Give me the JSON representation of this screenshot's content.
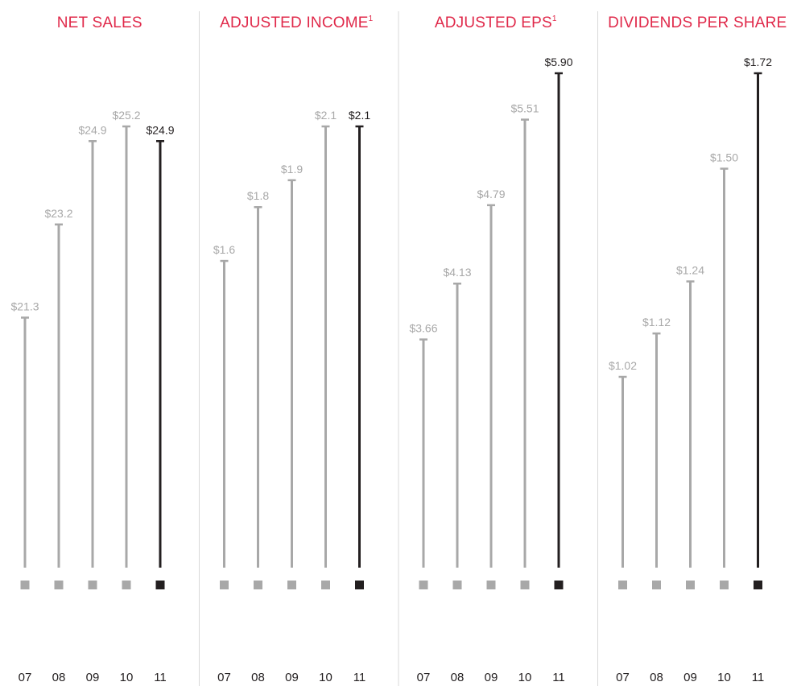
{
  "colors": {
    "title": "#e0294a",
    "bar": "#a8a8a8",
    "bar_highlight": "#231f20",
    "label": "#a8a8a8",
    "label_highlight": "#231f20",
    "tick": "#231f20",
    "divider": "#d9d9d9"
  },
  "chart_data": [
    {
      "type": "bar",
      "title": "NET SALES",
      "title_superscript": "",
      "categories": [
        "07",
        "08",
        "09",
        "10",
        "11"
      ],
      "values": [
        21.3,
        23.2,
        24.9,
        25.2,
        24.9
      ],
      "labels": [
        "$21.3",
        "$23.2",
        "$24.9",
        "$25.2",
        "$24.9"
      ],
      "highlight_index": 4
    },
    {
      "type": "bar",
      "title": "ADJUSTED INCOME",
      "title_superscript": "1",
      "categories": [
        "07",
        "08",
        "09",
        "10",
        "11"
      ],
      "values": [
        1.6,
        1.8,
        1.9,
        2.1,
        2.1
      ],
      "labels": [
        "$1.6",
        "$1.8",
        "$1.9",
        "$2.1",
        "$2.1"
      ],
      "highlight_index": 4
    },
    {
      "type": "bar",
      "title": "ADJUSTED EPS",
      "title_superscript": "1",
      "categories": [
        "07",
        "08",
        "09",
        "10",
        "11"
      ],
      "values": [
        3.66,
        4.13,
        4.79,
        5.51,
        5.9
      ],
      "labels": [
        "$3.66",
        "$4.13",
        "$4.79",
        "$5.51",
        "$5.90"
      ],
      "highlight_index": 4
    },
    {
      "type": "bar",
      "title": "DIVIDENDS PER SHARE",
      "title_superscript": "",
      "categories": [
        "07",
        "08",
        "09",
        "10",
        "11"
      ],
      "values": [
        1.02,
        1.12,
        1.24,
        1.5,
        1.72
      ],
      "labels": [
        "$1.02",
        "$1.12",
        "$1.24",
        "$1.50",
        "$1.72"
      ],
      "highlight_index": 4
    }
  ]
}
